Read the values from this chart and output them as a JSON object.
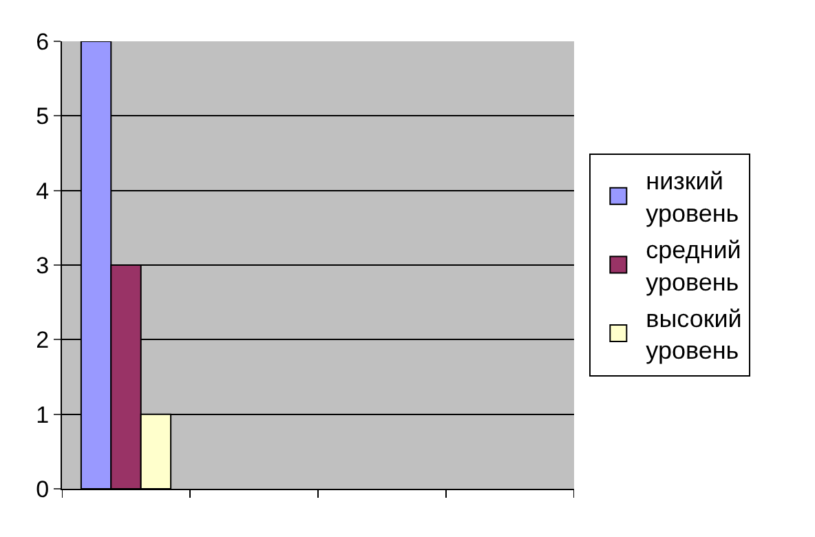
{
  "chart_data": {
    "type": "bar",
    "categories": [
      null,
      null,
      null,
      null
    ],
    "series": [
      {
        "name": "низкий уровень",
        "color": "#9999ff",
        "values": [
          6,
          null,
          null,
          null
        ]
      },
      {
        "name": "средний уровень",
        "color": "#993366",
        "values": [
          3,
          null,
          null,
          null
        ]
      },
      {
        "name": "высокий уровень",
        "color": "#ffffcc",
        "values": [
          1,
          null,
          null,
          null
        ]
      }
    ],
    "ylim": [
      0,
      6
    ],
    "yticks": [
      0,
      1,
      2,
      3,
      4,
      5,
      6
    ],
    "grid": "y",
    "legend": "right",
    "tick_labels": "y"
  }
}
